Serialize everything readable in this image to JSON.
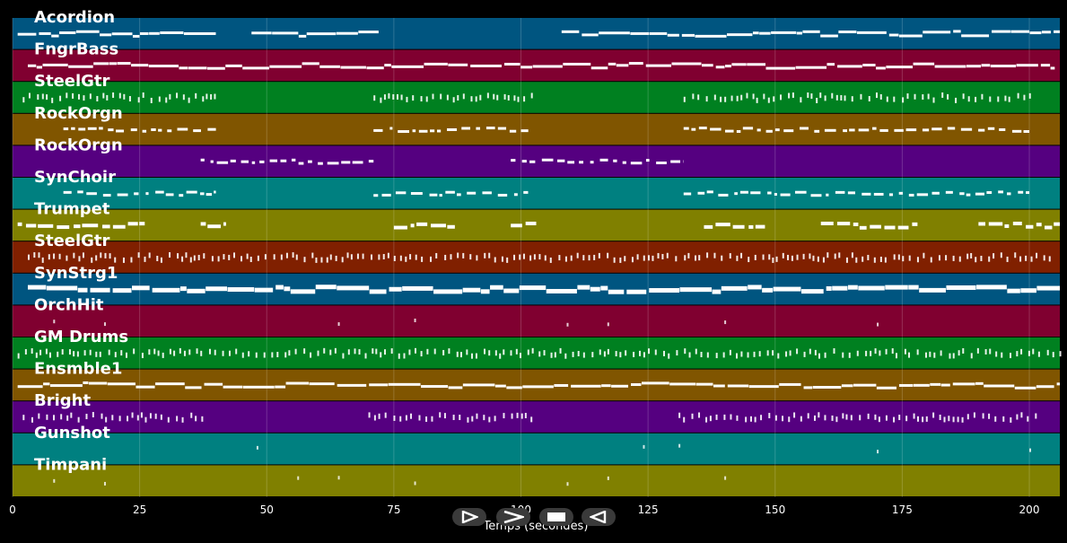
{
  "chart_data": {
    "type": "piano-roll",
    "xlabel": "Temps (secondes)",
    "x_ticks": [
      0,
      25,
      50,
      75,
      100,
      125,
      150,
      175,
      200
    ],
    "xlim": [
      0,
      206
    ],
    "tracks": [
      {
        "name": "Acordion",
        "color": "#005580",
        "style": "line",
        "spans": [
          [
            1,
            40
          ],
          [
            47,
            72
          ],
          [
            108,
            206
          ]
        ]
      },
      {
        "name": "FngrBass",
        "color": "#800030",
        "style": "line",
        "spans": [
          [
            3,
            205
          ]
        ]
      },
      {
        "name": "SteelGtr",
        "color": "#008020",
        "style": "ticks",
        "spans": [
          [
            2,
            40
          ],
          [
            71,
            102
          ],
          [
            132,
            201
          ]
        ]
      },
      {
        "name": "RockOrgn",
        "color": "#805500",
        "style": "dashes",
        "spans": [
          [
            10,
            40
          ],
          [
            71,
            102
          ],
          [
            132,
            200
          ]
        ]
      },
      {
        "name": "RockOrgn",
        "color": "#550080",
        "style": "dashes",
        "spans": [
          [
            37,
            71
          ],
          [
            98,
            132
          ]
        ]
      },
      {
        "name": "SynChoir",
        "color": "#008080",
        "style": "dashes",
        "spans": [
          [
            10,
            40
          ],
          [
            71,
            102
          ],
          [
            132,
            200
          ]
        ]
      },
      {
        "name": "Trumpet",
        "color": "#808000",
        "style": "blocks",
        "spans": [
          [
            1,
            26
          ],
          [
            37,
            42
          ],
          [
            75,
            87
          ],
          [
            98,
            103
          ],
          [
            136,
            148
          ],
          [
            159,
            178
          ],
          [
            190,
            206
          ]
        ]
      },
      {
        "name": "SteelGtr",
        "color": "#802000",
        "style": "ticks",
        "spans": [
          [
            3,
            204
          ]
        ]
      },
      {
        "name": "SynStrg1",
        "color": "#005580",
        "style": "thick",
        "spans": [
          [
            3,
            206
          ]
        ]
      },
      {
        "name": "OrchHit",
        "color": "#800030",
        "style": "sparse",
        "spans": [
          [
            8,
            9
          ],
          [
            18,
            19
          ],
          [
            64,
            65
          ],
          [
            79,
            80
          ],
          [
            109,
            110
          ],
          [
            117,
            118
          ],
          [
            140,
            141
          ],
          [
            170,
            171
          ]
        ]
      },
      {
        "name": "GM Drums",
        "color": "#008020",
        "style": "ticks",
        "spans": [
          [
            1,
            206
          ]
        ]
      },
      {
        "name": "Ensmble1",
        "color": "#805500",
        "style": "line",
        "spans": [
          [
            1,
            206
          ]
        ]
      },
      {
        "name": "Bright",
        "color": "#550080",
        "style": "ticks",
        "spans": [
          [
            2,
            38
          ],
          [
            70,
            102
          ],
          [
            131,
            202
          ]
        ]
      },
      {
        "name": "Gunshot",
        "color": "#008080",
        "style": "sparse",
        "spans": [
          [
            48,
            49
          ],
          [
            124,
            125
          ],
          [
            131,
            132
          ],
          [
            170,
            171
          ],
          [
            200,
            201
          ]
        ]
      },
      {
        "name": "Timpani",
        "color": "#808000",
        "style": "sparse",
        "spans": [
          [
            8,
            9
          ],
          [
            18,
            19
          ],
          [
            56,
            57
          ],
          [
            64,
            65
          ],
          [
            79,
            80
          ],
          [
            109,
            110
          ],
          [
            117,
            118
          ],
          [
            140,
            141
          ]
        ]
      }
    ]
  },
  "controls": [
    {
      "icon": "play-icon",
      "label": "play"
    },
    {
      "icon": "forward-icon",
      "label": "forward"
    },
    {
      "icon": "stop-icon",
      "label": "stop"
    },
    {
      "icon": "rewind-icon",
      "label": "rewind"
    }
  ]
}
